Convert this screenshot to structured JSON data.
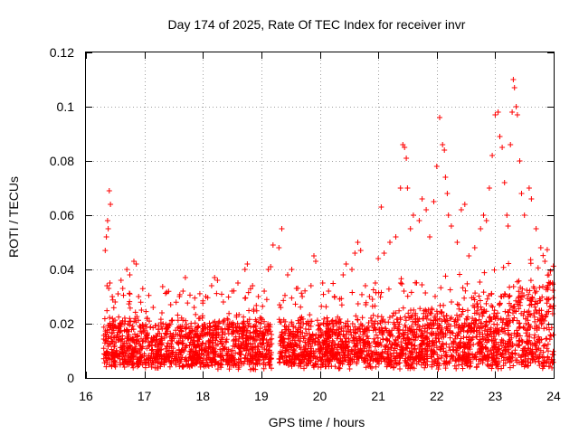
{
  "chart_data": {
    "type": "scatter",
    "title": "Day 174 of 2025, Rate Of TEC Index for receiver invr",
    "xlabel": "GPS time / hours",
    "ylabel": "ROTI / TECUs",
    "xlim": [
      16,
      24
    ],
    "ylim": [
      0,
      0.12
    ],
    "x_ticks": [
      16,
      17,
      18,
      19,
      20,
      21,
      22,
      23,
      24
    ],
    "x_tick_labels": [
      "16",
      "17",
      "18",
      "19",
      "20",
      "21",
      "22",
      "23",
      "24"
    ],
    "y_ticks": [
      0,
      0.02,
      0.04,
      0.06,
      0.08,
      0.1,
      0.12
    ],
    "y_tick_labels": [
      "0",
      "0.02",
      "0.04",
      "0.06",
      "0.08",
      "0.1",
      "0.12"
    ],
    "grid": true,
    "marker": "plus",
    "marker_color": "#ff0000",
    "series": [
      {
        "name": "ROTI",
        "points": [
          [
            16.33,
            0.047
          ],
          [
            16.35,
            0.052
          ],
          [
            16.37,
            0.058
          ],
          [
            16.38,
            0.055
          ],
          [
            16.4,
            0.069
          ],
          [
            16.42,
            0.064
          ],
          [
            16.36,
            0.034
          ],
          [
            16.39,
            0.033
          ],
          [
            16.41,
            0.035
          ],
          [
            16.45,
            0.03
          ],
          [
            16.5,
            0.028
          ],
          [
            16.55,
            0.031
          ],
          [
            16.6,
            0.036
          ],
          [
            16.63,
            0.033
          ],
          [
            16.7,
            0.04
          ],
          [
            16.75,
            0.038
          ],
          [
            16.82,
            0.043
          ],
          [
            16.86,
            0.042
          ],
          [
            16.9,
            0.03
          ],
          [
            16.95,
            0.025
          ],
          [
            17.05,
            0.022
          ],
          [
            17.15,
            0.026
          ],
          [
            17.3,
            0.024
          ],
          [
            17.45,
            0.027
          ],
          [
            17.6,
            0.03
          ],
          [
            17.66,
            0.032
          ],
          [
            17.7,
            0.037
          ],
          [
            17.85,
            0.026
          ],
          [
            17.95,
            0.022
          ],
          [
            18.05,
            0.03
          ],
          [
            18.15,
            0.034
          ],
          [
            18.2,
            0.037
          ],
          [
            18.25,
            0.036
          ],
          [
            18.35,
            0.028
          ],
          [
            18.5,
            0.032
          ],
          [
            18.6,
            0.035
          ],
          [
            18.72,
            0.04
          ],
          [
            18.76,
            0.042
          ],
          [
            18.85,
            0.034
          ],
          [
            18.95,
            0.03
          ],
          [
            19.05,
            0.032
          ],
          [
            19.12,
            0.04
          ],
          [
            19.16,
            0.041
          ],
          [
            19.2,
            0.049
          ],
          [
            19.3,
            0.048
          ],
          [
            19.35,
            0.055
          ],
          [
            19.45,
            0.038
          ],
          [
            19.52,
            0.04
          ],
          [
            19.6,
            0.033
          ],
          [
            19.7,
            0.03
          ],
          [
            19.85,
            0.034
          ],
          [
            19.9,
            0.045
          ],
          [
            19.93,
            0.043
          ],
          [
            20.05,
            0.035
          ],
          [
            20.15,
            0.032
          ],
          [
            20.25,
            0.03
          ],
          [
            20.4,
            0.038
          ],
          [
            20.45,
            0.042
          ],
          [
            20.55,
            0.04
          ],
          [
            20.6,
            0.046
          ],
          [
            20.65,
            0.05
          ],
          [
            20.7,
            0.047
          ],
          [
            20.78,
            0.034
          ],
          [
            20.85,
            0.03
          ],
          [
            20.95,
            0.035
          ],
          [
            21.0,
            0.044
          ],
          [
            21.05,
            0.063
          ],
          [
            21.1,
            0.046
          ],
          [
            21.2,
            0.05
          ],
          [
            21.3,
            0.052
          ],
          [
            21.38,
            0.07
          ],
          [
            21.42,
            0.086
          ],
          [
            21.45,
            0.085
          ],
          [
            21.48,
            0.081
          ],
          [
            21.5,
            0.07
          ],
          [
            21.55,
            0.055
          ],
          [
            21.6,
            0.06
          ],
          [
            21.7,
            0.058
          ],
          [
            21.75,
            0.066
          ],
          [
            21.82,
            0.062
          ],
          [
            21.88,
            0.052
          ],
          [
            21.95,
            0.065
          ],
          [
            22.0,
            0.078
          ],
          [
            22.05,
            0.096
          ],
          [
            22.1,
            0.086
          ],
          [
            22.13,
            0.084
          ],
          [
            22.15,
            0.074
          ],
          [
            22.18,
            0.068
          ],
          [
            22.2,
            0.06
          ],
          [
            22.25,
            0.056
          ],
          [
            22.35,
            0.05
          ],
          [
            22.42,
            0.062
          ],
          [
            22.48,
            0.064
          ],
          [
            22.55,
            0.045
          ],
          [
            22.65,
            0.048
          ],
          [
            22.75,
            0.055
          ],
          [
            22.8,
            0.06
          ],
          [
            22.85,
            0.058
          ],
          [
            22.9,
            0.07
          ],
          [
            22.95,
            0.082
          ],
          [
            23.0,
            0.097
          ],
          [
            23.05,
            0.098
          ],
          [
            23.08,
            0.089
          ],
          [
            23.12,
            0.085
          ],
          [
            23.16,
            0.072
          ],
          [
            23.2,
            0.06
          ],
          [
            23.22,
            0.056
          ],
          [
            23.26,
            0.086
          ],
          [
            23.29,
            0.098
          ],
          [
            23.31,
            0.11
          ],
          [
            23.33,
            0.107
          ],
          [
            23.36,
            0.1
          ],
          [
            23.38,
            0.097
          ],
          [
            23.42,
            0.08
          ],
          [
            23.45,
            0.068
          ],
          [
            23.5,
            0.06
          ],
          [
            23.58,
            0.07
          ],
          [
            23.62,
            0.066
          ],
          [
            23.7,
            0.055
          ],
          [
            23.78,
            0.048
          ],
          [
            23.85,
            0.043
          ],
          [
            23.92,
            0.038
          ],
          [
            23.98,
            0.035
          ]
        ]
      }
    ],
    "dense_band_notes": "Thousands of additional points form a dense band between about 0.003 and 0.03 TECU/s across 16.3-19.2 h and 19.3-24 h, with a data gap near 19.2-19.3 h."
  }
}
